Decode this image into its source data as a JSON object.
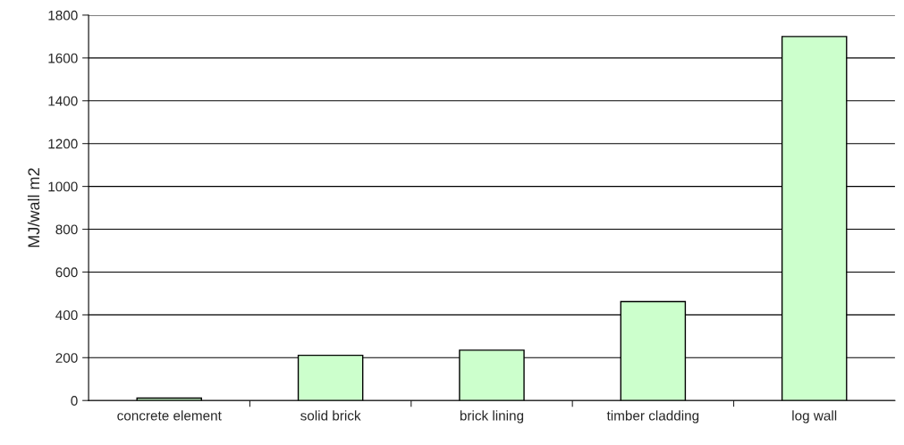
{
  "chart_data": {
    "type": "bar",
    "ylabel": "MJ/wall m2",
    "categories": [
      "concrete element",
      "solid brick",
      "brick lining",
      "timber cladding",
      "log wall"
    ],
    "values": [
      11,
      211,
      235,
      462,
      1700
    ],
    "color": "#ccffcc",
    "ylim": [
      0,
      1800
    ],
    "yticks": [
      0,
      200,
      400,
      600,
      800,
      1000,
      1200,
      1400,
      1600,
      1800
    ],
    "grid": "y",
    "legend": false
  }
}
